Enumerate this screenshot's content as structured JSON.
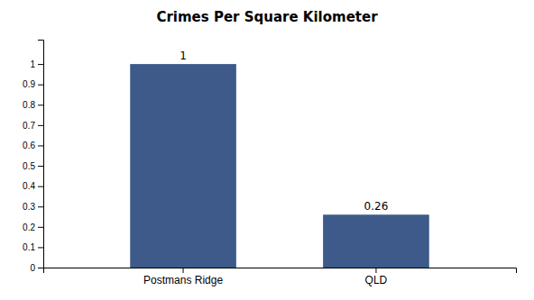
{
  "chart_data": {
    "type": "bar",
    "title": "Crimes Per Square Kilometer",
    "categories": [
      "Postmans Ridge",
      "QLD"
    ],
    "values": [
      1.0,
      0.26
    ],
    "color": "#3d5a8a",
    "ylim": [
      0,
      1.12
    ],
    "yticks": [
      0,
      0.1,
      0.2,
      0.3,
      0.4,
      0.5,
      0.6,
      0.7,
      0.8,
      0.9,
      1.0
    ],
    "grid": false,
    "data_labels": true
  }
}
